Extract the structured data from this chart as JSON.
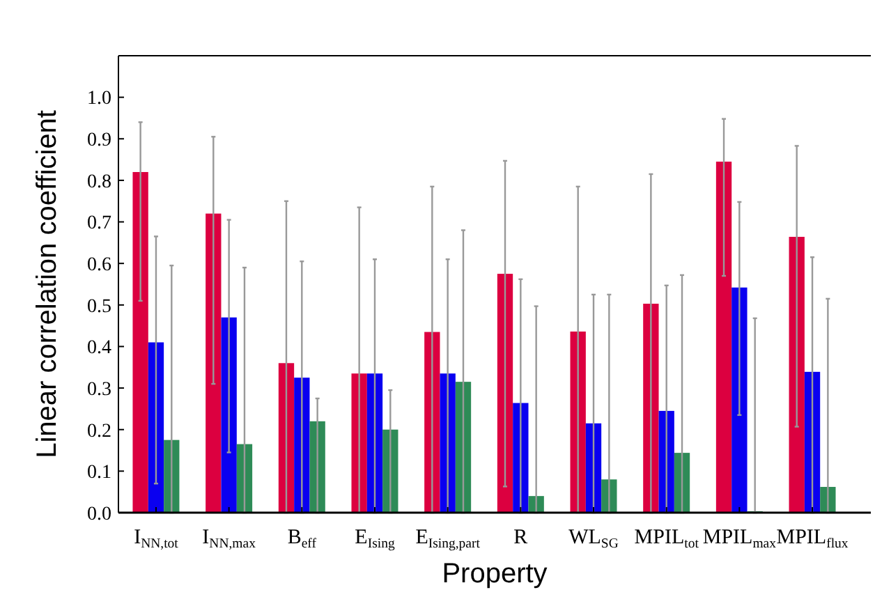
{
  "chart_data": {
    "type": "bar",
    "xlabel": "Property",
    "ylabel": "Linear correlation coefficient",
    "categories": [
      "I$_{NN,tot}$",
      "I$_{NN,max}$",
      "B$_{eff}$",
      "E$_{Ising}$",
      "E$_{Ising,part}$",
      "R",
      "WL$_{SG}$",
      "MPIL$_{tot}$",
      "MPIL$_{max}$",
      "MPIL$_{flux}$"
    ],
    "series": [
      {
        "color": "#dc0040",
        "values": [
          0.82,
          0.72,
          0.36,
          0.335,
          0.435,
          0.575,
          0.436,
          0.503,
          0.845,
          0.664
        ],
        "errors": [
          [
            0.51,
            0.94
          ],
          [
            0.31,
            0.905
          ],
          [
            0,
            0.75
          ],
          [
            0,
            0.735
          ],
          [
            0,
            0.785
          ],
          [
            0.063,
            0.847
          ],
          [
            0,
            0.785
          ],
          [
            0,
            0.815
          ],
          [
            0.57,
            0.948
          ],
          [
            0.207,
            0.883
          ]
        ]
      },
      {
        "color": "#0a00f0",
        "values": [
          0.41,
          0.47,
          0.325,
          0.335,
          0.335,
          0.264,
          0.215,
          0.245,
          0.542,
          0.339
        ],
        "errors": [
          [
            0.07,
            0.665
          ],
          [
            0.145,
            0.705
          ],
          [
            0,
            0.605
          ],
          [
            0,
            0.61
          ],
          [
            0,
            0.61
          ],
          [
            0,
            0.562
          ],
          [
            0,
            0.525
          ],
          [
            0,
            0.547
          ],
          [
            0.235,
            0.748
          ],
          [
            0,
            0.615
          ]
        ]
      },
      {
        "color": "#2e8b57",
        "values": [
          0.175,
          0.165,
          0.22,
          0.2,
          0.315,
          0.04,
          0.08,
          0.144,
          0,
          0.062
        ],
        "errors": [
          [
            0,
            0.595
          ],
          [
            0,
            0.59
          ],
          [
            0,
            0.275
          ],
          [
            0,
            0.295
          ],
          [
            0,
            0.68
          ],
          [
            0,
            0.497
          ],
          [
            0,
            0.525
          ],
          [
            0,
            0.572
          ],
          [
            0,
            0.468
          ],
          [
            0,
            0.515
          ]
        ]
      }
    ],
    "ylim": [
      0,
      1.1
    ],
    "yticks": [
      {
        "value": 0,
        "label": "0.0"
      },
      0.1,
      0.2,
      0.3,
      0.4,
      0.5,
      0.6,
      0.7,
      0.8,
      0.9,
      {
        "value": 1,
        "label": "1.0"
      }
    ],
    "grid": false
  }
}
